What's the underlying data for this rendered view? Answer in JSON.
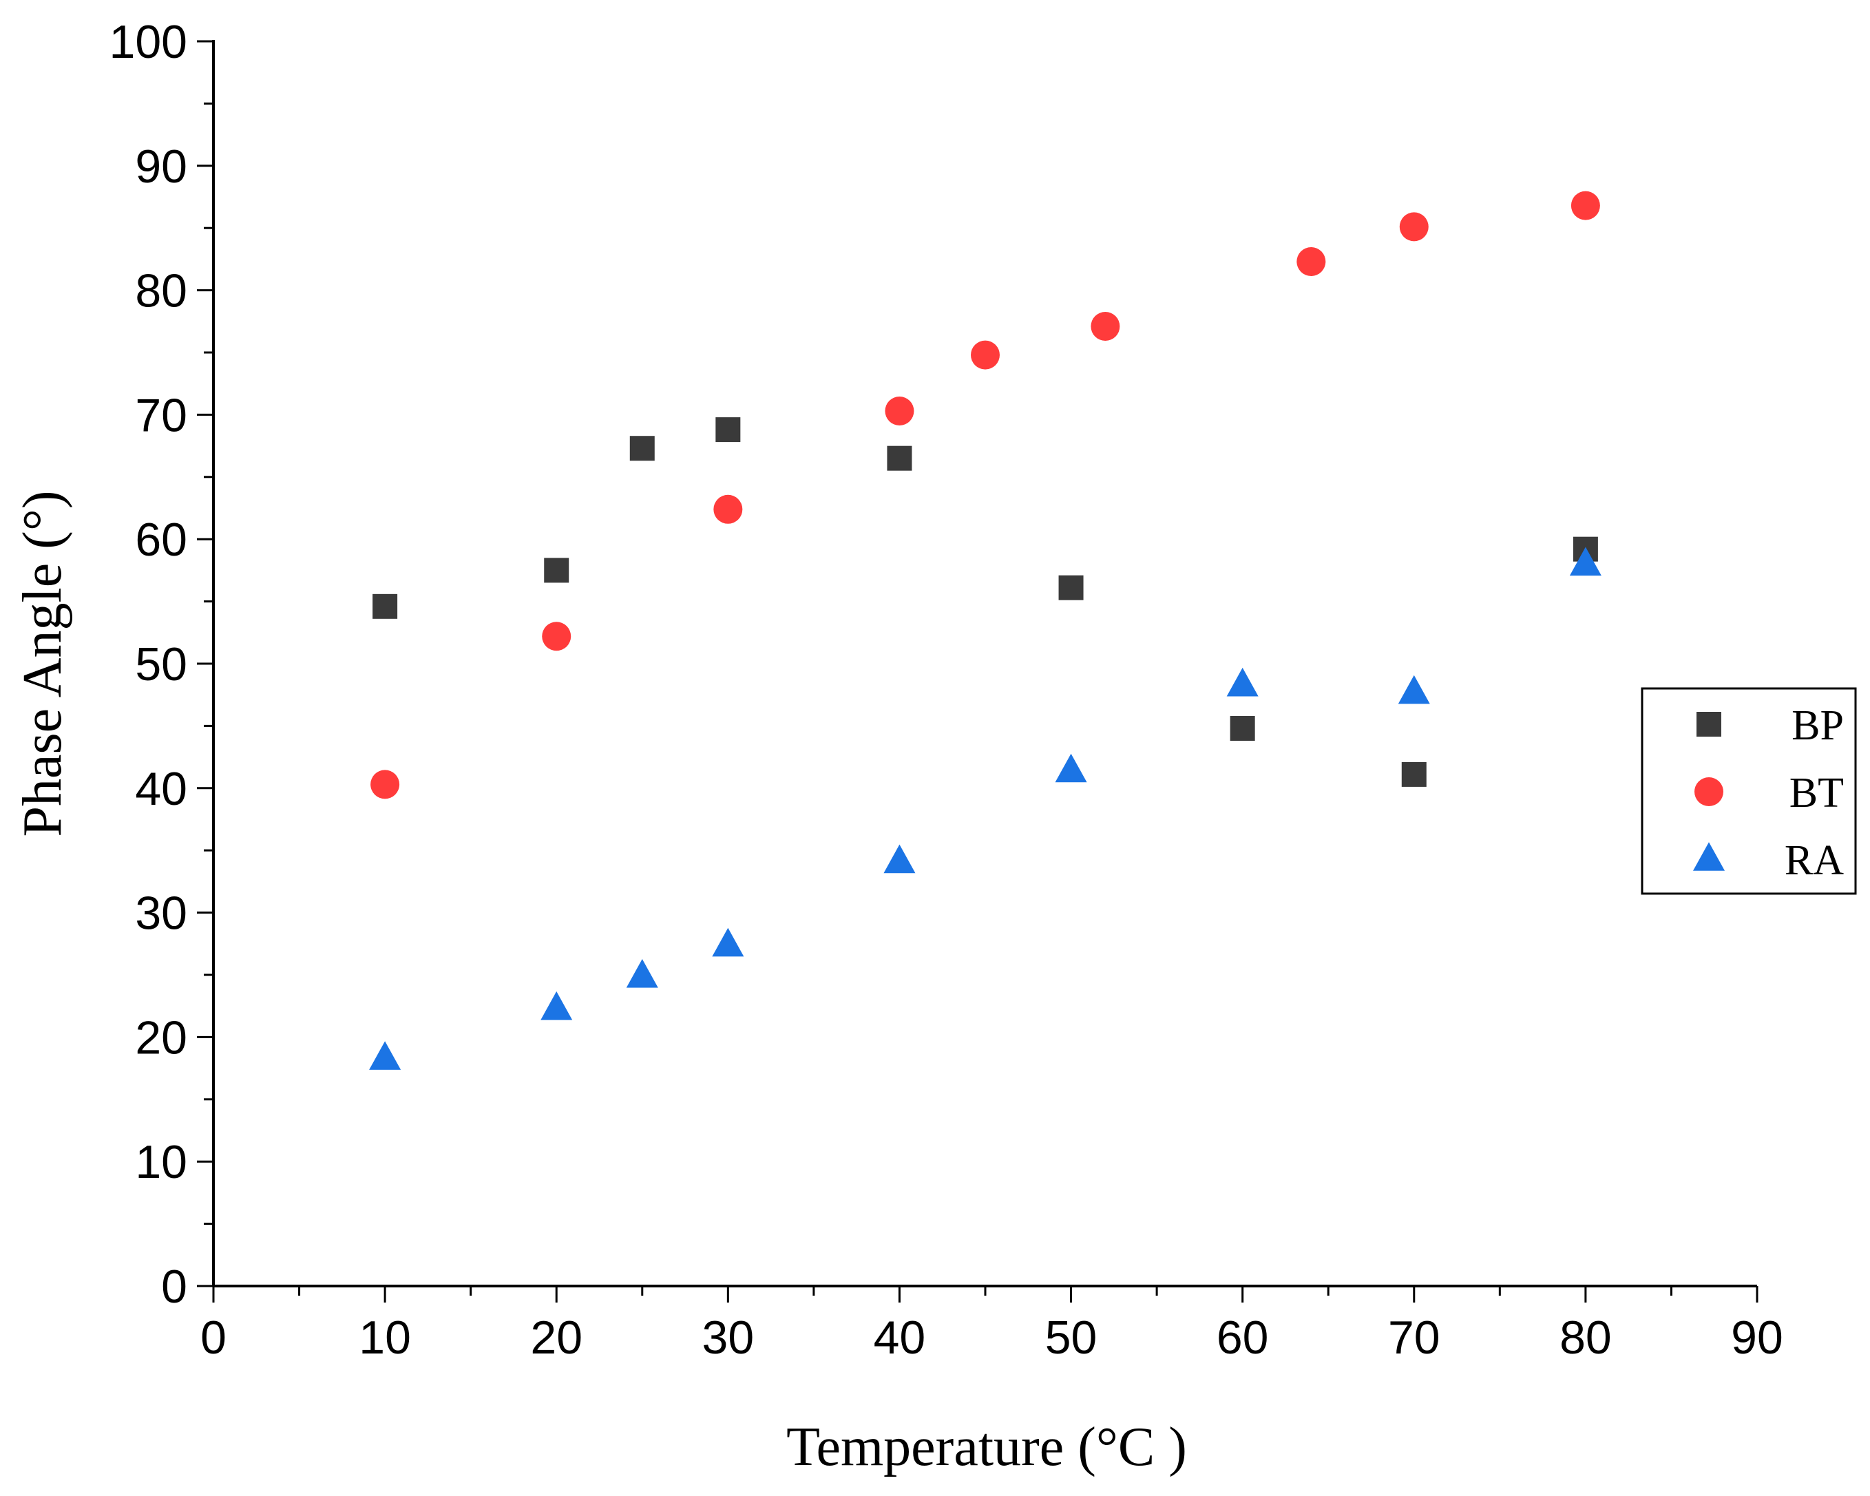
{
  "chart_data": {
    "type": "scatter",
    "title": "",
    "xlabel": "Temperature (°C )",
    "ylabel": "Phase Angle (°)",
    "xlim": [
      0,
      90
    ],
    "ylim": [
      0,
      100
    ],
    "xticks": [
      0,
      10,
      20,
      30,
      40,
      50,
      60,
      70,
      80,
      90
    ],
    "yticks": [
      0,
      10,
      20,
      30,
      40,
      50,
      60,
      70,
      80,
      90,
      100
    ],
    "x_minor_step": 5,
    "y_minor_step": 5,
    "grid": false,
    "legend_position": "right",
    "series": [
      {
        "name": "BP",
        "marker": "square",
        "color": "#3a3a3a",
        "points": [
          {
            "x": 10,
            "y": 54.6
          },
          {
            "x": 20,
            "y": 57.5
          },
          {
            "x": 25,
            "y": 67.3
          },
          {
            "x": 30,
            "y": 68.8
          },
          {
            "x": 40,
            "y": 66.5
          },
          {
            "x": 50,
            "y": 56.1
          },
          {
            "x": 60,
            "y": 44.8
          },
          {
            "x": 70,
            "y": 41.1
          },
          {
            "x": 80,
            "y": 59.2
          }
        ]
      },
      {
        "name": "BT",
        "marker": "circle",
        "color": "#ff3b3b",
        "points": [
          {
            "x": 10,
            "y": 40.3
          },
          {
            "x": 20,
            "y": 52.2
          },
          {
            "x": 30,
            "y": 62.4
          },
          {
            "x": 40,
            "y": 70.3
          },
          {
            "x": 45,
            "y": 74.8
          },
          {
            "x": 52,
            "y": 77.1
          },
          {
            "x": 64,
            "y": 82.3
          },
          {
            "x": 70,
            "y": 85.1
          },
          {
            "x": 80,
            "y": 86.8
          }
        ]
      },
      {
        "name": "RA",
        "marker": "triangle",
        "color": "#1b74e4",
        "points": [
          {
            "x": 10,
            "y": 18.3
          },
          {
            "x": 20,
            "y": 22.3
          },
          {
            "x": 25,
            "y": 24.9
          },
          {
            "x": 30,
            "y": 27.4
          },
          {
            "x": 40,
            "y": 34.1
          },
          {
            "x": 50,
            "y": 41.4
          },
          {
            "x": 60,
            "y": 48.3
          },
          {
            "x": 70,
            "y": 47.7
          },
          {
            "x": 80,
            "y": 58.0
          }
        ]
      }
    ]
  }
}
